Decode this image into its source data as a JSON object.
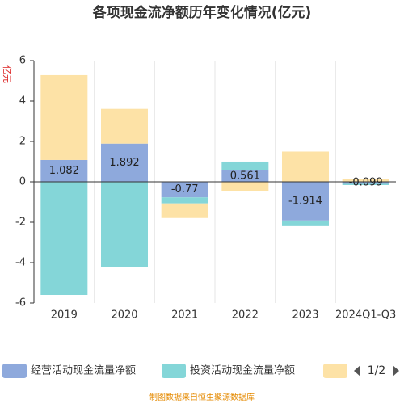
{
  "chart_data": {
    "type": "stacked_bar",
    "title": "各项现金流净额历年变化情况(亿元)",
    "y_label": "亿元",
    "categories": [
      "2019",
      "2020",
      "2021",
      "2022",
      "2023",
      "2024Q1-Q3"
    ],
    "series": [
      {
        "name": "经营活动现金流量净额",
        "color": "#8ea9dc",
        "values": [
          1.082,
          1.892,
          -0.77,
          0.561,
          -1.914,
          -0.099
        ],
        "show_labels": true
      },
      {
        "name": "投资活动现金流量净额",
        "color": "#84d6d8",
        "values": [
          -5.6,
          -4.24,
          -0.3,
          0.44,
          -0.28,
          -0.06
        ]
      },
      {
        "color": "#fde2a6",
        "values": [
          4.2,
          1.72,
          -0.72,
          -0.44,
          1.5,
          0.15
        ]
      }
    ],
    "ylim": [
      -6,
      6
    ],
    "yticks": [
      -6,
      -4,
      -2,
      0,
      2,
      4,
      6
    ],
    "legend_page": "1/2",
    "source": "制图数据来自恒生聚源数据库"
  }
}
